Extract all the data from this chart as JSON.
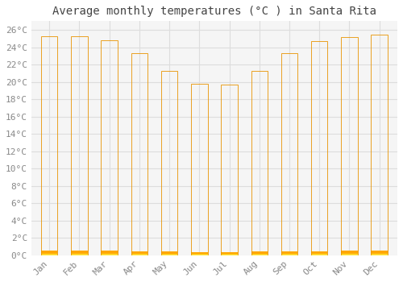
{
  "title": "Average monthly temperatures (°C ) in Santa Rita",
  "months": [
    "Jan",
    "Feb",
    "Mar",
    "Apr",
    "May",
    "Jun",
    "Jul",
    "Aug",
    "Sep",
    "Oct",
    "Nov",
    "Dec"
  ],
  "values": [
    25.3,
    25.3,
    24.8,
    23.3,
    21.3,
    19.8,
    19.7,
    21.3,
    23.3,
    24.7,
    25.2,
    25.4
  ],
  "bar_color_top": "#FFD966",
  "bar_color_bottom": "#FFA500",
  "bar_edge_color": "#E89400",
  "ylim": [
    0,
    27
  ],
  "ytick_step": 2,
  "background_color": "#ffffff",
  "plot_bg_color": "#f5f5f5",
  "grid_color": "#dddddd",
  "title_fontsize": 10,
  "tick_fontsize": 8,
  "font_family": "monospace",
  "title_color": "#444444",
  "tick_color": "#888888"
}
